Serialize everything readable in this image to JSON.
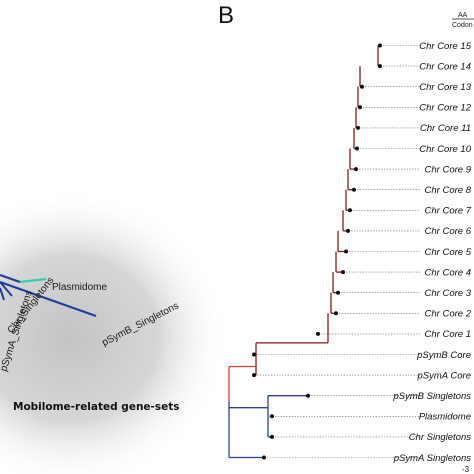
{
  "panel": {
    "letter": "B"
  },
  "left_panel": {
    "group_label": "Mobilome-related gene-sets",
    "branch_labels": [
      "Plasmidome",
      "Chr_Singletons",
      "pSymA_Singletons",
      "pSymB_Singletons"
    ],
    "colors": {
      "blue": "#1f3d9e",
      "cyan": "#2fd1b0",
      "halo": "#c9c9c9"
    }
  },
  "scale": {
    "top": "AA",
    "bottom": "Codon"
  },
  "axis": {
    "tick": "-3"
  },
  "tree": {
    "leaves": [
      "Chr Core 15",
      "Chr Core 14",
      "Chr Core 13",
      "Chr Core 12",
      "Chr Core 11",
      "Chr Core 10",
      "Chr Core 9",
      "Chr Core 8",
      "Chr Core 7",
      "Chr Core 6",
      "Chr Core 5",
      "Chr Core 4",
      "Chr Core 3",
      "Chr Core 2",
      "Chr Core 1",
      "pSymB Core",
      "pSymA Core",
      "pSymB Singletons",
      "Plasmidome",
      "Chr Singletons",
      "pSymA Singletons"
    ],
    "colors": {
      "core": "#8b1a1a",
      "root_red": "#e03a3a",
      "mobilome": "#2b3fa8",
      "plasmidome": "#2fd1b0"
    }
  }
}
